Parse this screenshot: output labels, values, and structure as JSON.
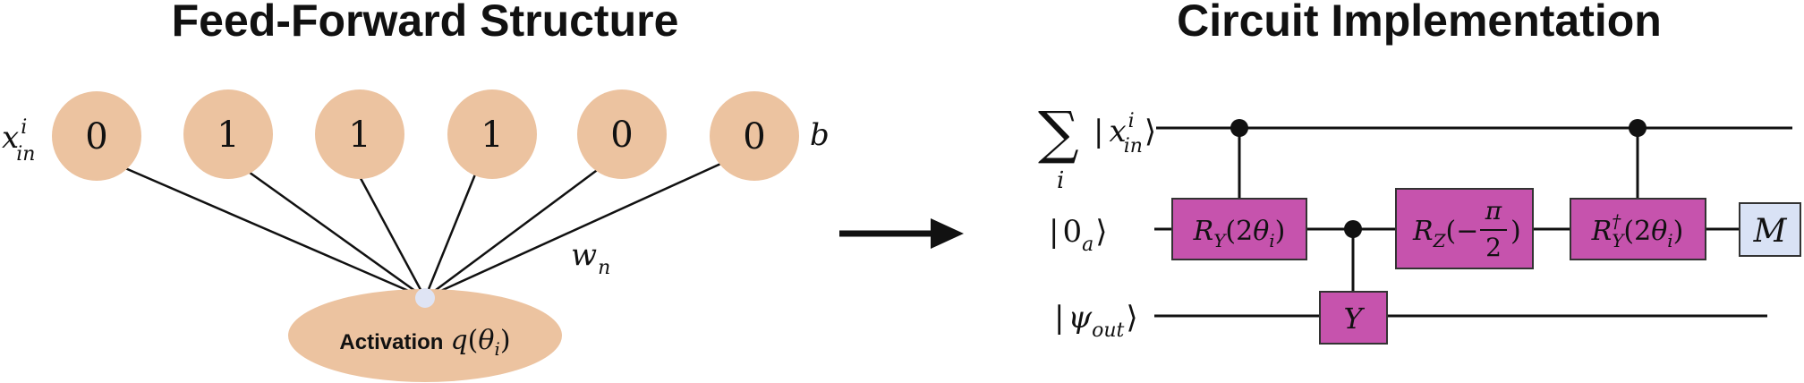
{
  "left_panel": {
    "title": "Feed-Forward Structure",
    "input_label": {
      "base": "x",
      "sup": "i",
      "sub": "in"
    },
    "bits": [
      "0",
      "1",
      "1",
      "1",
      "0",
      "0"
    ],
    "bias_label": "b",
    "weight_label": {
      "base": "w",
      "sub": "n"
    },
    "activation": {
      "word": "Activation",
      "func": "q",
      "open": "(",
      "theta": "θ",
      "sub": "i",
      "close": ")"
    }
  },
  "right_panel": {
    "title": "Circuit Implementation",
    "wire_labels": {
      "sum_symbol": "∑",
      "sum_index": "i",
      "input_ket": {
        "open": "|",
        "base": "x",
        "sup": "i",
        "sub": "in",
        "close": "⟩"
      },
      "ancilla_ket": {
        "open": "|",
        "base": "0",
        "sub": "a",
        "close": "⟩"
      },
      "output_ket": {
        "open": "|",
        "base": "ψ",
        "sub": "out",
        "close": "⟩"
      }
    },
    "gates": {
      "ry": {
        "R": "R",
        "sub": "Y",
        "arg": "(2",
        "theta": "θ",
        "tsub": "i",
        "close": ")"
      },
      "y": "Y",
      "rz": {
        "R": "R",
        "sub": "Z",
        "open": "(−",
        "num": "π",
        "den": "2",
        "close": ")"
      },
      "ry_dagger": {
        "R": "R",
        "sub": "Y",
        "sup": "†",
        "arg": "(2",
        "theta": "θ",
        "tsub": "i",
        "close": ")"
      },
      "measure": "M"
    }
  },
  "colors": {
    "node": "#ecc3a0",
    "activation_dot": "#dfe4f4",
    "gate": "#c653ad",
    "measure": "#d9e2f5"
  },
  "icons": [
    "arrow-right-icon"
  ]
}
